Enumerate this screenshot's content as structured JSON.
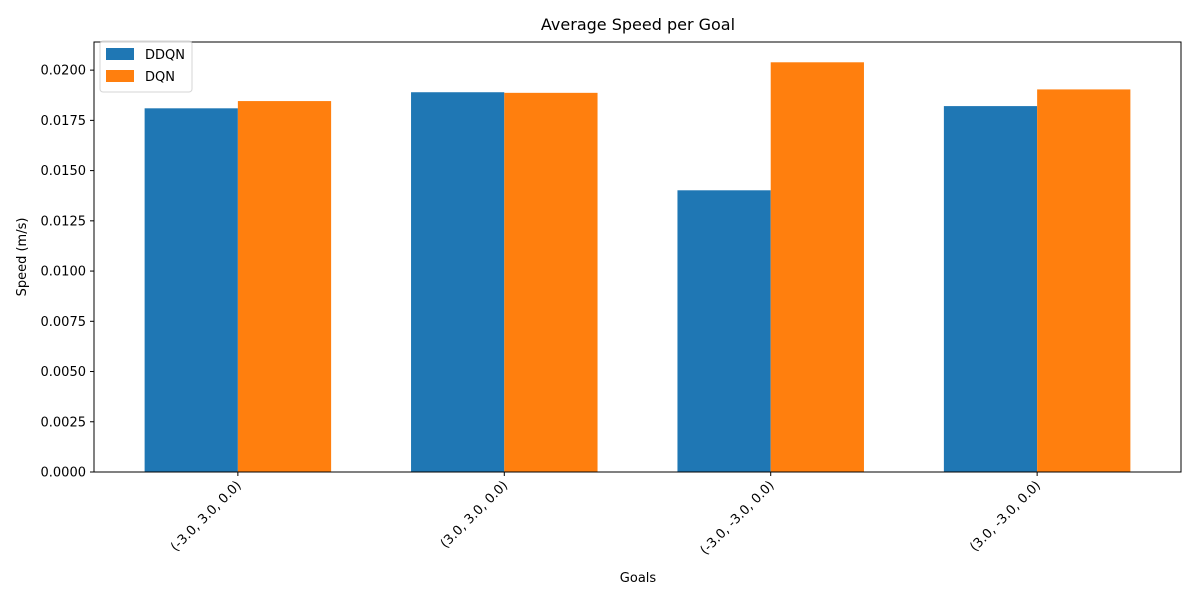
{
  "chart_data": {
    "type": "bar",
    "title": "Average Speed per Goal",
    "xlabel": "Goals",
    "ylabel": "Speed (m/s)",
    "categories": [
      "(-3.0, 3.0, 0.0)",
      "(3.0, 3.0, 0.0)",
      "(-3.0, -3.0, 0.0)",
      "(3.0, -3.0, 0.0)"
    ],
    "series": [
      {
        "name": "DDQN",
        "color": "#1f77b4",
        "values": [
          0.0181,
          0.0189,
          0.01402,
          0.01821
        ]
      },
      {
        "name": "DQN",
        "color": "#ff7f0e",
        "values": [
          0.01846,
          0.01887,
          0.02039,
          0.01904
        ]
      }
    ],
    "ylim": [
      0,
      0.0214
    ],
    "yticks": [
      "0.0000",
      "0.0025",
      "0.0050",
      "0.0075",
      "0.0100",
      "0.0125",
      "0.0150",
      "0.0175",
      "0.0200"
    ],
    "grid": false,
    "legend_position": "top-left"
  }
}
